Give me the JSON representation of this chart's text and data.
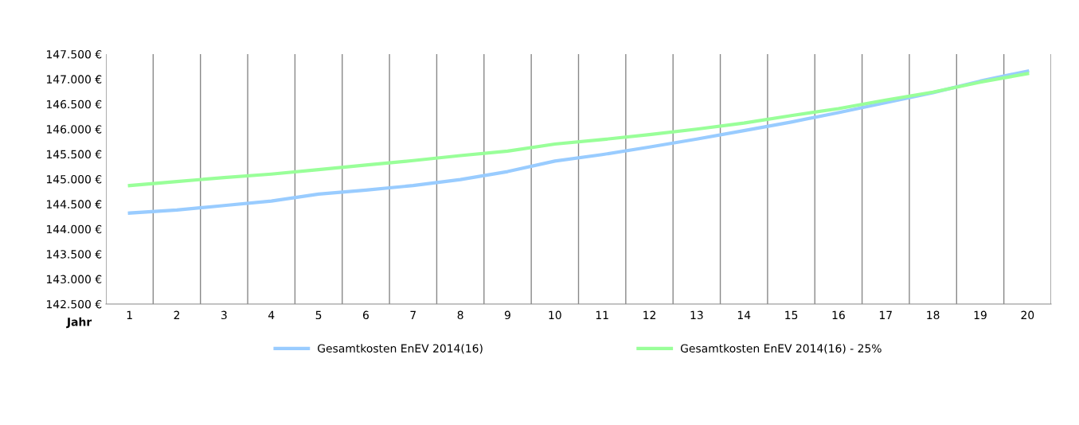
{
  "chart_data": {
    "type": "line",
    "xlabel": "Jahr",
    "categories": [
      "1",
      "2",
      "3",
      "4",
      "5",
      "6",
      "7",
      "8",
      "9",
      "10",
      "11",
      "12",
      "13",
      "14",
      "15",
      "16",
      "17",
      "18",
      "19",
      "20"
    ],
    "series": [
      {
        "name": "Gesamtkosten EnEV 2014(16)",
        "color": "#99ccff",
        "values": [
          144320,
          144380,
          144470,
          144560,
          144700,
          144780,
          144870,
          144990,
          145150,
          145360,
          145490,
          145640,
          145800,
          145970,
          146140,
          146330,
          146530,
          146730,
          146960,
          147160
        ]
      },
      {
        "name": "Gesamtkosten EnEV 2014(16) - 25%",
        "color": "#99ff99",
        "values": [
          144870,
          144950,
          145030,
          145100,
          145190,
          145280,
          145370,
          145470,
          145560,
          145700,
          145790,
          145890,
          146000,
          146120,
          146270,
          146410,
          146580,
          146740,
          146940,
          147110
        ]
      }
    ],
    "ylim": [
      142500,
      147500
    ],
    "yticks": [
      {
        "value": 142500,
        "label": "142.500 €"
      },
      {
        "value": 143000,
        "label": "143.000 €"
      },
      {
        "value": 143500,
        "label": "143.500 €"
      },
      {
        "value": 144000,
        "label": "144.000 €"
      },
      {
        "value": 144500,
        "label": "144.500 €"
      },
      {
        "value": 145000,
        "label": "145.000 €"
      },
      {
        "value": 145500,
        "label": "145.500 €"
      },
      {
        "value": 146000,
        "label": "146.000 €"
      },
      {
        "value": 146500,
        "label": "146.500 €"
      },
      {
        "value": 147000,
        "label": "147.000 €"
      },
      {
        "value": 147500,
        "label": "147.500 €"
      }
    ],
    "grid": "x",
    "legend": "bottom",
    "marker": "none",
    "line_style": "solid"
  }
}
